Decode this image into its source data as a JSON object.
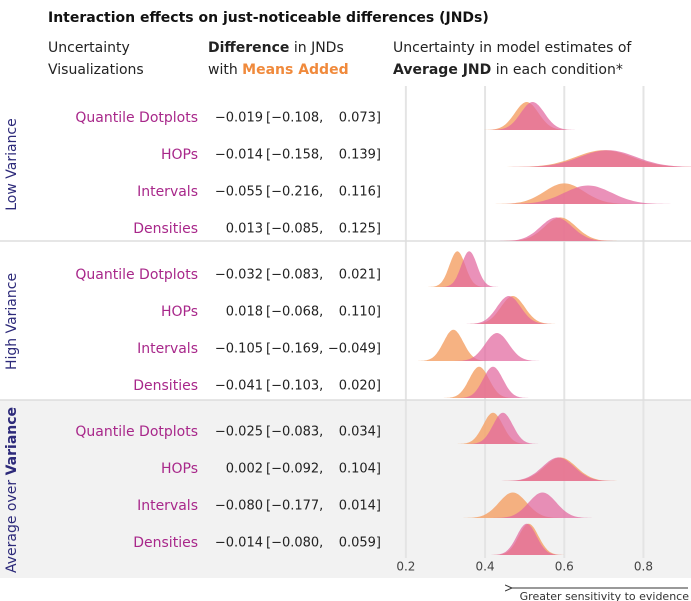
{
  "chart_data": {
    "type": "ridgeline",
    "title": "Interaction effects on just-noticeable differences (JNDs)",
    "headers": {
      "vis": [
        "Uncertainty",
        "Visualizations"
      ],
      "diff_line1": [
        "Difference",
        " in JNDs"
      ],
      "diff_line2": [
        "with ",
        "Means Added"
      ],
      "est_line1": "Uncertainty in model estimates of",
      "est_line2": [
        "Average JND",
        " in each condition*"
      ]
    },
    "colors": {
      "baseline": "#e2679e",
      "means_added": "#f4a46c",
      "means_added_text": "#f08a3c"
    },
    "xlim": [
      0.165,
      0.92
    ],
    "xticks": [
      0.2,
      0.4,
      0.6,
      0.8
    ],
    "grid": true,
    "x_note": "Greater sensitivity to evidence",
    "groups": [
      {
        "label": [
          "Low Variance"
        ],
        "shaded": false,
        "rows": [
          {
            "name": "Quantile Dotplots",
            "estimate": "−0.019",
            "ci_low": "[−0.108,",
            "ci_high": "0.073]",
            "baseline": {
              "center": 0.52,
              "sd": 0.03
            },
            "means_added": {
              "center": 0.505,
              "sd": 0.03
            }
          },
          {
            "name": "HOPs",
            "estimate": "−0.014",
            "ci_low": "[−0.158,",
            "ci_high": "0.139]",
            "baseline": {
              "center": 0.71,
              "sd": 0.07
            },
            "means_added": {
              "center": 0.7,
              "sd": 0.07
            }
          },
          {
            "name": "Intervals",
            "estimate": "−0.055",
            "ci_low": "[−0.216,",
            "ci_high": "0.116]",
            "baseline": {
              "center": 0.66,
              "sd": 0.06
            },
            "means_added": {
              "center": 0.6,
              "sd": 0.05
            }
          },
          {
            "name": "Densities",
            "estimate": "0.013",
            "ci_low": "[−0.085,",
            "ci_high": "0.125]",
            "baseline": {
              "center": 0.58,
              "sd": 0.04
            },
            "means_added": {
              "center": 0.59,
              "sd": 0.04
            }
          }
        ]
      },
      {
        "label": [
          "High Variance"
        ],
        "shaded": false,
        "rows": [
          {
            "name": "Quantile Dotplots",
            "estimate": "−0.032",
            "ci_low": "[−0.083,",
            "ci_high": "0.021]",
            "baseline": {
              "center": 0.36,
              "sd": 0.02
            },
            "means_added": {
              "center": 0.33,
              "sd": 0.02
            }
          },
          {
            "name": "HOPs",
            "estimate": "0.018",
            "ci_low": "[−0.068,",
            "ci_high": "0.110]",
            "baseline": {
              "center": 0.46,
              "sd": 0.03
            },
            "means_added": {
              "center": 0.47,
              "sd": 0.03
            }
          },
          {
            "name": "Intervals",
            "estimate": "−0.105",
            "ci_low": "[−0.169,",
            "ci_high": "−0.049]",
            "baseline": {
              "center": 0.43,
              "sd": 0.03
            },
            "means_added": {
              "center": 0.32,
              "sd": 0.025
            }
          },
          {
            "name": "Densities",
            "estimate": "−0.041",
            "ci_low": "[−0.103,",
            "ci_high": "0.020]",
            "baseline": {
              "center": 0.42,
              "sd": 0.025
            },
            "means_added": {
              "center": 0.385,
              "sd": 0.025
            }
          }
        ]
      },
      {
        "label": [
          "Average over ",
          "Variance"
        ],
        "shaded": true,
        "rows": [
          {
            "name": "Quantile Dotplots",
            "estimate": "−0.025",
            "ci_low": "[−0.083,",
            "ci_high": "0.034]",
            "baseline": {
              "center": 0.445,
              "sd": 0.025
            },
            "means_added": {
              "center": 0.42,
              "sd": 0.025
            }
          },
          {
            "name": "HOPs",
            "estimate": "0.002",
            "ci_low": "[−0.092,",
            "ci_high": "0.104]",
            "baseline": {
              "center": 0.585,
              "sd": 0.04
            },
            "means_added": {
              "center": 0.59,
              "sd": 0.04
            }
          },
          {
            "name": "Intervals",
            "estimate": "−0.080",
            "ci_low": "[−0.177,",
            "ci_high": "0.014]",
            "baseline": {
              "center": 0.545,
              "sd": 0.035
            },
            "means_added": {
              "center": 0.47,
              "sd": 0.035
            }
          },
          {
            "name": "Densities",
            "estimate": "−0.014",
            "ci_low": "[−0.080,",
            "ci_high": "0.059]",
            "baseline": {
              "center": 0.505,
              "sd": 0.025
            },
            "means_added": {
              "center": 0.51,
              "sd": 0.025
            }
          }
        ]
      }
    ]
  }
}
